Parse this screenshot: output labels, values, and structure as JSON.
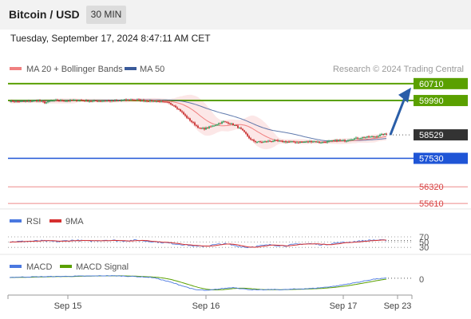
{
  "header": {
    "title": "Bitcoin / USD",
    "timeframe": "30 MIN",
    "datetime": "Tuesday, September 17, 2024 8:47:11 AM CET"
  },
  "legend": {
    "ma20": "MA 20 + Bollinger Bands",
    "ma50": "MA 50",
    "credit": "Research © 2024 Trading Central"
  },
  "colors": {
    "up": "#2e9e5b",
    "down": "#c93030",
    "ma20": "#f08080",
    "band_fill": "#fbe3e3",
    "ma50": "#3a5a9a",
    "green_level": "#5aa000",
    "blue_level": "#1f55d6",
    "red_level": "#ee8a8a",
    "rsi": "#4a78e0",
    "rsi_ma": "#d62f2f",
    "macd": "#4a78e0",
    "macd_signal": "#5aa000",
    "arrow": "#2a5ea8"
  },
  "chart_data": [
    {
      "type": "candlestick",
      "title": "Bitcoin / USD",
      "x_ticks": [
        "Sep 15",
        "Sep 16",
        "Sep 17",
        "Sep 23"
      ],
      "series": [
        {
          "name": "MA 20 + Bollinger Bands"
        },
        {
          "name": "MA 50"
        }
      ],
      "price_path": [
        [
          0,
          59960
        ],
        [
          6,
          59945
        ],
        [
          12,
          59960
        ],
        [
          18,
          59990
        ],
        [
          22,
          59895
        ],
        [
          26,
          59980
        ],
        [
          30,
          60000
        ],
        [
          36,
          59980
        ],
        [
          40,
          59995
        ],
        [
          44,
          60010
        ],
        [
          48,
          59985
        ],
        [
          52,
          59960
        ],
        [
          56,
          59975
        ],
        [
          60,
          59990
        ],
        [
          64,
          59970
        ],
        [
          70,
          59995
        ],
        [
          76,
          60030
        ],
        [
          80,
          60015
        ],
        [
          84,
          59985
        ],
        [
          88,
          59970
        ],
        [
          92,
          59960
        ],
        [
          96,
          59925
        ],
        [
          99,
          59900
        ],
        [
          103,
          59780
        ],
        [
          107,
          59550
        ],
        [
          110,
          59330
        ],
        [
          113,
          59150
        ],
        [
          116,
          58970
        ],
        [
          119,
          58800
        ],
        [
          122,
          58790
        ],
        [
          126,
          58880
        ],
        [
          130,
          58990
        ],
        [
          134,
          59090
        ],
        [
          138,
          59020
        ],
        [
          142,
          58900
        ],
        [
          145,
          58760
        ],
        [
          148,
          58560
        ],
        [
          151,
          58320
        ],
        [
          154,
          58240
        ],
        [
          158,
          58220
        ],
        [
          162,
          58260
        ],
        [
          166,
          58280
        ],
        [
          170,
          58250
        ],
        [
          175,
          58230
        ],
        [
          180,
          58210
        ],
        [
          186,
          58230
        ],
        [
          190,
          58260
        ],
        [
          194,
          58210
        ],
        [
          198,
          58230
        ],
        [
          202,
          58270
        ],
        [
          206,
          58300
        ],
        [
          210,
          58280
        ],
        [
          214,
          58350
        ],
        [
          218,
          58390
        ],
        [
          222,
          58420
        ],
        [
          226,
          58440
        ],
        [
          230,
          58470
        ],
        [
          234,
          58560
        ],
        [
          236,
          58550
        ]
      ],
      "levels": [
        {
          "label": "60710",
          "value": 60710,
          "type": "resistance"
        },
        {
          "label": "59990",
          "value": 59990,
          "type": "resistance"
        },
        {
          "label": "58529",
          "value": 58529,
          "type": "last"
        },
        {
          "label": "57530",
          "value": 57530,
          "type": "support"
        },
        {
          "label": "56320",
          "value": 56320,
          "type": "support"
        },
        {
          "label": "55610",
          "value": 55610,
          "type": "support"
        }
      ],
      "forecast": {
        "from": 58529,
        "to": 60710
      }
    },
    {
      "type": "line",
      "title": "RSI",
      "series": [
        {
          "name": "RSI"
        },
        {
          "name": "9MA"
        }
      ],
      "y_ticks": [
        70,
        50,
        30
      ],
      "rsi_path": [
        [
          0,
          51
        ],
        [
          10,
          53
        ],
        [
          20,
          55
        ],
        [
          30,
          52
        ],
        [
          40,
          57
        ],
        [
          50,
          54
        ],
        [
          60,
          58
        ],
        [
          70,
          55
        ],
        [
          80,
          57
        ],
        [
          90,
          52
        ],
        [
          100,
          46
        ],
        [
          110,
          40
        ],
        [
          118,
          33
        ],
        [
          126,
          38
        ],
        [
          134,
          44
        ],
        [
          140,
          38
        ],
        [
          148,
          30
        ],
        [
          156,
          35
        ],
        [
          164,
          40
        ],
        [
          172,
          36
        ],
        [
          180,
          42
        ],
        [
          188,
          44
        ],
        [
          196,
          40
        ],
        [
          204,
          46
        ],
        [
          212,
          50
        ],
        [
          220,
          54
        ],
        [
          228,
          58
        ],
        [
          236,
          56
        ]
      ]
    },
    {
      "type": "line",
      "title": "MACD",
      "series": [
        {
          "name": "MACD"
        },
        {
          "name": "MACD Signal"
        }
      ],
      "y_ticks": [
        0
      ],
      "macd_path": [
        [
          0,
          20
        ],
        [
          10,
          24
        ],
        [
          20,
          28
        ],
        [
          30,
          30
        ],
        [
          40,
          33
        ],
        [
          50,
          35
        ],
        [
          60,
          38
        ],
        [
          70,
          36
        ],
        [
          80,
          28
        ],
        [
          90,
          18
        ],
        [
          100,
          -30
        ],
        [
          108,
          -75
        ],
        [
          116,
          -120
        ],
        [
          124,
          -130
        ],
        [
          132,
          -110
        ],
        [
          140,
          -95
        ],
        [
          148,
          -115
        ],
        [
          156,
          -125
        ],
        [
          164,
          -118
        ],
        [
          172,
          -120
        ],
        [
          180,
          -112
        ],
        [
          188,
          -108
        ],
        [
          196,
          -96
        ],
        [
          204,
          -80
        ],
        [
          212,
          -55
        ],
        [
          220,
          -30
        ],
        [
          228,
          0
        ],
        [
          236,
          10
        ]
      ]
    }
  ]
}
